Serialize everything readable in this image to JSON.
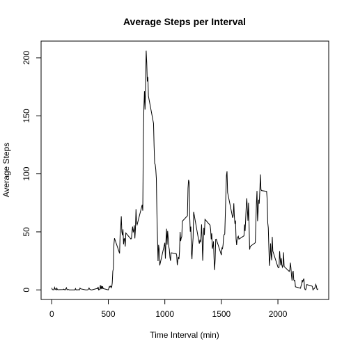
{
  "chart_data": {
    "type": "line",
    "title": "Average Steps per Interval",
    "x_label": "Time Interval (min)",
    "y_label": "Average Steps",
    "color": "#000000",
    "x": [
      0,
      5,
      10,
      15,
      20,
      25,
      30,
      35,
      40,
      45,
      50,
      55,
      100,
      105,
      110,
      115,
      120,
      125,
      130,
      135,
      140,
      145,
      150,
      155,
      200,
      205,
      210,
      215,
      220,
      225,
      230,
      235,
      240,
      245,
      250,
      255,
      300,
      305,
      310,
      315,
      320,
      325,
      330,
      335,
      340,
      345,
      350,
      355,
      400,
      405,
      410,
      415,
      420,
      425,
      430,
      435,
      440,
      445,
      450,
      455,
      500,
      505,
      510,
      515,
      520,
      525,
      530,
      535,
      540,
      545,
      550,
      555,
      600,
      605,
      610,
      615,
      620,
      625,
      630,
      635,
      640,
      645,
      650,
      655,
      700,
      705,
      710,
      715,
      720,
      725,
      730,
      735,
      740,
      745,
      750,
      755,
      800,
      805,
      810,
      815,
      820,
      825,
      830,
      835,
      840,
      845,
      850,
      855,
      900,
      905,
      910,
      915,
      920,
      925,
      930,
      935,
      940,
      945,
      950,
      955,
      1000,
      1005,
      1010,
      1015,
      1020,
      1025,
      1030,
      1035,
      1040,
      1045,
      1050,
      1055,
      1100,
      1105,
      1110,
      1115,
      1120,
      1125,
      1130,
      1135,
      1140,
      1145,
      1150,
      1155,
      1200,
      1205,
      1210,
      1215,
      1220,
      1225,
      1230,
      1235,
      1240,
      1245,
      1250,
      1255,
      1300,
      1305,
      1310,
      1315,
      1320,
      1325,
      1330,
      1335,
      1340,
      1345,
      1350,
      1355,
      1400,
      1405,
      1410,
      1415,
      1420,
      1425,
      1430,
      1435,
      1440,
      1445,
      1450,
      1455,
      1500,
      1505,
      1510,
      1515,
      1520,
      1525,
      1530,
      1535,
      1540,
      1545,
      1550,
      1555,
      1600,
      1605,
      1610,
      1615,
      1620,
      1625,
      1630,
      1635,
      1640,
      1645,
      1650,
      1655,
      1700,
      1705,
      1710,
      1715,
      1720,
      1725,
      1730,
      1735,
      1740,
      1745,
      1750,
      1755,
      1800,
      1805,
      1810,
      1815,
      1820,
      1825,
      1830,
      1835,
      1840,
      1845,
      1850,
      1855,
      1900,
      1905,
      1910,
      1915,
      1920,
      1925,
      1930,
      1935,
      1940,
      1945,
      1950,
      1955,
      2000,
      2005,
      2010,
      2015,
      2020,
      2025,
      2030,
      2035,
      2040,
      2045,
      2050,
      2055,
      2100,
      2105,
      2110,
      2115,
      2120,
      2125,
      2130,
      2135,
      2140,
      2145,
      2150,
      2155,
      2200,
      2205,
      2210,
      2215,
      2220,
      2225,
      2230,
      2235,
      2240,
      2245,
      2250,
      2255,
      2300,
      2305,
      2310,
      2315,
      2320,
      2325,
      2330,
      2335,
      2340,
      2345,
      2350,
      2355
    ],
    "values": [
      1.72,
      0.34,
      0.13,
      0.15,
      0.08,
      2.09,
      0.53,
      0.87,
      0,
      1.47,
      0.3,
      0.13,
      0.32,
      0.68,
      0.15,
      0.34,
      0,
      1.11,
      1.83,
      0.17,
      0.17,
      0.38,
      0.26,
      0,
      0,
      0,
      1.13,
      0,
      0,
      0.13,
      0,
      0.23,
      0,
      0,
      1.55,
      0.94,
      0,
      0,
      0,
      0,
      0.21,
      0.62,
      1.62,
      0.58,
      0.49,
      0.08,
      0,
      0,
      1.19,
      0.94,
      2.57,
      0,
      0.34,
      0.36,
      4.11,
      0.66,
      3.49,
      0.83,
      3.11,
      1.11,
      0,
      1.57,
      3,
      2.25,
      3.32,
      2.96,
      2.09,
      6.06,
      16.02,
      18.34,
      39.45,
      44.49,
      31.49,
      49.26,
      53.77,
      63.45,
      49.96,
      47.08,
      52.15,
      39.34,
      44.02,
      44.17,
      37.36,
      49.04,
      43.81,
      44.38,
      50.51,
      54.51,
      49.92,
      50.98,
      55.68,
      44.32,
      52.26,
      69.55,
      57.85,
      56.15,
      73.38,
      68.21,
      129.43,
      157.53,
      171.15,
      155.4,
      177.3,
      206.17,
      195.92,
      179.57,
      183.4,
      167.02,
      143.45,
      124.04,
      109.11,
      108.11,
      103.72,
      95.97,
      66.21,
      45.23,
      24.79,
      38.75,
      34.98,
      21.06,
      40.57,
      26.98,
      42.42,
      52.66,
      38.92,
      50.79,
      44.28,
      37.42,
      34.7,
      28.34,
      25.09,
      31.94,
      31.36,
      29.68,
      21.32,
      25.55,
      28.38,
      26.47,
      33.43,
      49.98,
      42.04,
      44.6,
      46.04,
      59.19,
      63.87,
      87.7,
      94.85,
      92.77,
      63.4,
      50.17,
      54.47,
      32.42,
      26.53,
      37.74,
      45.06,
      67.28,
      42.34,
      39.89,
      43.26,
      40.98,
      46.25,
      56.43,
      42.75,
      25.13,
      39.96,
      53.55,
      47.32,
      60.81,
      55.75,
      51.96,
      43.58,
      48.7,
      35.47,
      37.55,
      41.85,
      27.51,
      17.11,
      26.08,
      43.62,
      43.77,
      30.02,
      36.08,
      35.49,
      38.85,
      45.96,
      47.75,
      48.13,
      65.32,
      82.91,
      98.66,
      102.11,
      83.96,
      62.13,
      64.13,
      74.55,
      63.17,
      56.91,
      59.77,
      43.87,
      38.57,
      44.66,
      45.45,
      46.21,
      43.68,
      46.62,
      56.3,
      50.72,
      61.23,
      72.72,
      78.94,
      68.94,
      59.66,
      75.09,
      56.51,
      34.77,
      37.45,
      40.68,
      58.02,
      74.7,
      85.32,
      59.26,
      67.77,
      77.7,
      74.25,
      85.34,
      99.45,
      86.58,
      85.6,
      84.87,
      77.83,
      58.04,
      53.36,
      36.32,
      20.72,
      27.4,
      40.02,
      30.21,
      25.55,
      45.66,
      33.53,
      19.62,
      19.02,
      19.34,
      33.34,
      26.81,
      21.17,
      27.3,
      21.34,
      19.55,
      21.32,
      32.3,
      20.15,
      15.94,
      17.23,
      23.45,
      19.25,
      12.45,
      8.02,
      14.66,
      16.3,
      8.68,
      7.79,
      8.13,
      2.62,
      1.45,
      3.68,
      4.81,
      8.51,
      7.08,
      8.7,
      9.75,
      2.21,
      0.32,
      0.11,
      1.6,
      4.6,
      3.3,
      2.85,
      0,
      0.83,
      0.96,
      1.58,
      2.6,
      4.7,
      3.3,
      0.64,
      0.23,
      1.08
    ],
    "xlim": [
      -94.2,
      2449.2
    ],
    "ylim": [
      -8.25,
      214.4
    ],
    "xticks": [
      0,
      500,
      1000,
      1500,
      2000
    ],
    "yticks": [
      0,
      50,
      100,
      150,
      200
    ]
  }
}
